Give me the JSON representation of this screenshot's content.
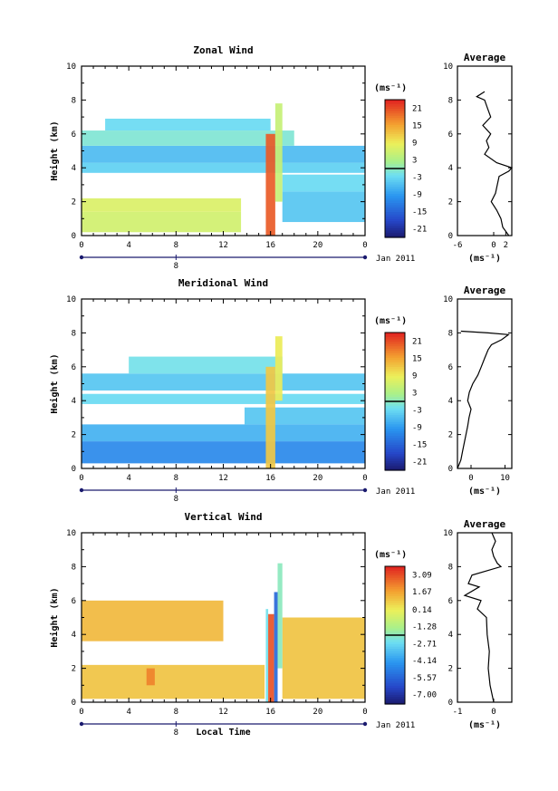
{
  "figure": {
    "xlabel": "Local Time",
    "date_label": "Jan 2011",
    "day_label": "8"
  },
  "chart_data": [
    {
      "type": "heatmap",
      "title": "Zonal Wind",
      "ylabel": "Height (km)",
      "ylim": [
        0,
        10
      ],
      "xlim": [
        0,
        24
      ],
      "xticks": [
        "0",
        "4",
        "8",
        "12",
        "16",
        "20",
        "0"
      ],
      "yticks": [
        "0",
        "2",
        "4",
        "6",
        "8",
        "10"
      ],
      "colorbar": {
        "unit": "(ms⁻¹)",
        "range": [
          -24,
          24
        ],
        "ticks": [
          "21",
          "15",
          "9",
          "3",
          "-3",
          "-9",
          "-15",
          "-21"
        ],
        "values": [
          21,
          15,
          9,
          3,
          -3,
          -9,
          -15,
          -21
        ]
      },
      "features": [
        {
          "y0": 0.2,
          "y1": 1.4,
          "x0": 0,
          "x1": 13.5,
          "value": 6
        },
        {
          "y0": 1.4,
          "y1": 2.2,
          "x0": 0,
          "x1": 13.5,
          "value": 7
        },
        {
          "y0": 0.8,
          "y1": 2.6,
          "x0": 17,
          "x1": 24,
          "value": -5
        },
        {
          "y0": 2.6,
          "y1": 3.6,
          "x0": 17,
          "x1": 24,
          "value": -3
        },
        {
          "y0": 3.7,
          "y1": 4.3,
          "x0": 0,
          "x1": 24,
          "value": -4
        },
        {
          "y0": 4.3,
          "y1": 5.3,
          "x0": 0,
          "x1": 24,
          "value": -6
        },
        {
          "y0": 5.3,
          "y1": 6.2,
          "x0": 0,
          "x1": 18,
          "value": -1
        },
        {
          "y0": 6.2,
          "y1": 6.9,
          "x0": 2,
          "x1": 16,
          "value": -3
        },
        {
          "y0": 0,
          "y1": 6,
          "x0": 15.6,
          "x1": 16.4,
          "value": 20
        },
        {
          "y0": 2,
          "y1": 7.8,
          "x0": 16.4,
          "x1": 17,
          "value": 5
        }
      ],
      "profile": {
        "title": "Average",
        "xlabel": "(ms⁻¹)",
        "xlim": [
          -6,
          3
        ],
        "xticks": [
          "-6",
          "0",
          "2"
        ],
        "xtick_values": [
          -6,
          0,
          2
        ],
        "heights": [
          0,
          0.5,
          1,
          1.5,
          2,
          2.5,
          3,
          3.5,
          3.8,
          4,
          4.3,
          4.8,
          5.2,
          5.6,
          6,
          6.5,
          7,
          7.5,
          8,
          8.2,
          8.5
        ],
        "values": [
          2.5,
          1.5,
          1.2,
          0.5,
          -0.4,
          0.3,
          0.6,
          0.9,
          2.5,
          3,
          0.5,
          -1.5,
          -0.8,
          -1.2,
          -0.5,
          -1.8,
          -0.5,
          -1.0,
          -1.5,
          -2.8,
          -1.5
        ]
      }
    },
    {
      "type": "heatmap",
      "title": "Meridional Wind",
      "ylabel": "Height (km)",
      "ylim": [
        0,
        10
      ],
      "xlim": [
        0,
        24
      ],
      "xticks": [
        "0",
        "4",
        "8",
        "12",
        "16",
        "20",
        "0"
      ],
      "yticks": [
        "0",
        "2",
        "4",
        "6",
        "8",
        "10"
      ],
      "colorbar": {
        "unit": "(ms⁻¹)",
        "range": [
          -24,
          24
        ],
        "ticks": [
          "21",
          "15",
          "9",
          "3",
          "-3",
          "-9",
          "-15",
          "-21"
        ],
        "values": [
          21,
          15,
          9,
          3,
          -3,
          -9,
          -15,
          -21
        ]
      },
      "features": [
        {
          "y0": 0.3,
          "y1": 1.6,
          "x0": 0,
          "x1": 24,
          "value": -11
        },
        {
          "y0": 1.6,
          "y1": 2.6,
          "x0": 0,
          "x1": 24,
          "value": -7
        },
        {
          "y0": 2.6,
          "y1": 3.6,
          "x0": 13.8,
          "x1": 24,
          "value": -5
        },
        {
          "y0": 3.8,
          "y1": 4.4,
          "x0": 0,
          "x1": 24,
          "value": -3
        },
        {
          "y0": 4.6,
          "y1": 5.6,
          "x0": 0,
          "x1": 24,
          "value": -5
        },
        {
          "y0": 5.6,
          "y1": 6.6,
          "x0": 4,
          "x1": 17,
          "value": -2
        },
        {
          "y0": 0,
          "y1": 6,
          "x0": 15.6,
          "x1": 16.4,
          "value": 12
        },
        {
          "y0": 4,
          "y1": 7.8,
          "x0": 16.4,
          "x1": 17,
          "value": 9
        }
      ],
      "profile": {
        "title": "Average",
        "xlabel": "(ms⁻¹)",
        "xlim": [
          -4,
          12
        ],
        "xticks": [
          "0",
          "10"
        ],
        "xtick_values": [
          0,
          10
        ],
        "heights": [
          0,
          0.5,
          1,
          1.5,
          2,
          2.5,
          3,
          3.5,
          4,
          4.5,
          5,
          5.5,
          6,
          6.5,
          7,
          7.3,
          7.6,
          7.9,
          8,
          8.1
        ],
        "values": [
          -4,
          -3,
          -2.5,
          -2,
          -1.5,
          -1,
          -0.6,
          0,
          -1,
          -0.5,
          0.5,
          2,
          3,
          4,
          5,
          6,
          9,
          11,
          5,
          -3
        ]
      }
    },
    {
      "type": "heatmap",
      "title": "Vertical Wind",
      "ylabel": "Height (km)",
      "ylim": [
        0,
        10
      ],
      "xlim": [
        0,
        24
      ],
      "xticks": [
        "0",
        "4",
        "8",
        "12",
        "16",
        "20",
        "0"
      ],
      "yticks": [
        "0",
        "2",
        "4",
        "6",
        "8",
        "10"
      ],
      "colorbar": {
        "unit": "(ms⁻¹)",
        "range": [
          -7.8,
          3.8
        ],
        "ticks": [
          "3.09",
          "1.67",
          "0.14",
          "-1.28",
          "-2.71",
          "-4.14",
          "-5.57",
          "-7.00"
        ],
        "values": [
          3.09,
          1.67,
          0.14,
          -1.28,
          -2.71,
          -4.14,
          -5.57,
          -7.0
        ]
      },
      "features": [
        {
          "y0": 0.2,
          "y1": 2.2,
          "x0": 0,
          "x1": 15.5,
          "value": 1.0
        },
        {
          "y0": 0.2,
          "y1": 5.0,
          "x0": 17,
          "x1": 24,
          "value": 1.0
        },
        {
          "y0": 3.6,
          "y1": 6.0,
          "x0": 0,
          "x1": 12,
          "value": 1.2
        },
        {
          "y0": 1.0,
          "y1": 2.0,
          "x0": 5.5,
          "x1": 6.2,
          "value": 2.2
        },
        {
          "y0": 0,
          "y1": 5.5,
          "x0": 15.6,
          "x1": 15.8,
          "value": -2.5
        },
        {
          "y0": 0,
          "y1": 5.2,
          "x0": 15.8,
          "x1": 16.3,
          "value": 3.0
        },
        {
          "y0": 0,
          "y1": 6.5,
          "x0": 16.3,
          "x1": 16.6,
          "value": -5.5
        },
        {
          "y0": 2,
          "y1": 8.2,
          "x0": 16.6,
          "x1": 17.0,
          "value": -2.0
        }
      ],
      "profile": {
        "title": "Average",
        "xlabel": "(ms⁻¹)",
        "xlim": [
          -1,
          0.5
        ],
        "xticks": [
          "-1",
          "0"
        ],
        "xtick_values": [
          -1,
          0
        ],
        "heights": [
          0,
          0.5,
          1,
          2,
          3,
          4,
          5,
          5.5,
          6,
          6.3,
          6.8,
          7,
          7.5,
          8,
          8.2,
          8.6,
          9,
          9.5,
          10
        ],
        "values": [
          0,
          -0.05,
          -0.1,
          -0.15,
          -0.12,
          -0.18,
          -0.2,
          -0.45,
          -0.35,
          -0.8,
          -0.4,
          -0.7,
          -0.6,
          0.2,
          0.1,
          0.0,
          -0.05,
          0.05,
          -0.05
        ]
      }
    }
  ]
}
